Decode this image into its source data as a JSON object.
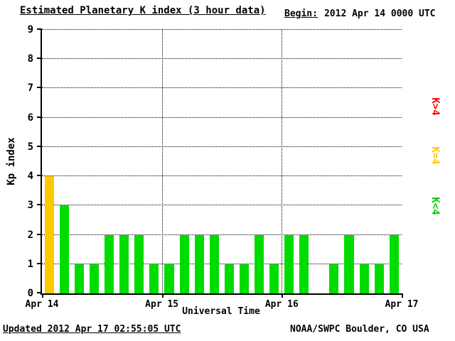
{
  "header": {
    "title": "Estimated Planetary K index (3 hour data)",
    "begin_label": "Begin:",
    "begin_value": "2012 Apr 14 0000 UTC"
  },
  "chart_data": {
    "type": "bar",
    "title": "Estimated Planetary K index (3 hour data)",
    "xlabel": "Universal Time",
    "ylabel": "Kp index",
    "ylim": [
      0,
      9
    ],
    "y_ticks": [
      0,
      1,
      2,
      3,
      4,
      5,
      6,
      7,
      8,
      9
    ],
    "x_tick_labels": [
      "Apr 14",
      "Apr 15",
      "Apr 16",
      "Apr 17"
    ],
    "bar_interval_hours": 3,
    "grid": "dotted horizontal lines at each Kp integer, dotted vertical lines at day boundaries",
    "values": [
      4,
      3,
      1,
      1,
      2,
      2,
      2,
      1,
      1,
      2,
      2,
      2,
      1,
      1,
      2,
      1,
      2,
      2,
      0,
      1,
      2,
      1,
      1,
      2
    ],
    "colors": {
      "low": "#00dc00",
      "mid": "#ffc800",
      "high": "#ff0000"
    },
    "color_rule": "green if K<4, yellow if K=4, red if K>4"
  },
  "legend": {
    "items": [
      {
        "label": "K>4",
        "color": "#ff0000"
      },
      {
        "label": "K=4",
        "color": "#ffc800"
      },
      {
        "label": "K<4",
        "color": "#00cc00"
      }
    ]
  },
  "footer": {
    "updated": "Updated 2012 Apr 17 02:55:05 UTC",
    "source": "NOAA/SWPC Boulder, CO USA"
  }
}
